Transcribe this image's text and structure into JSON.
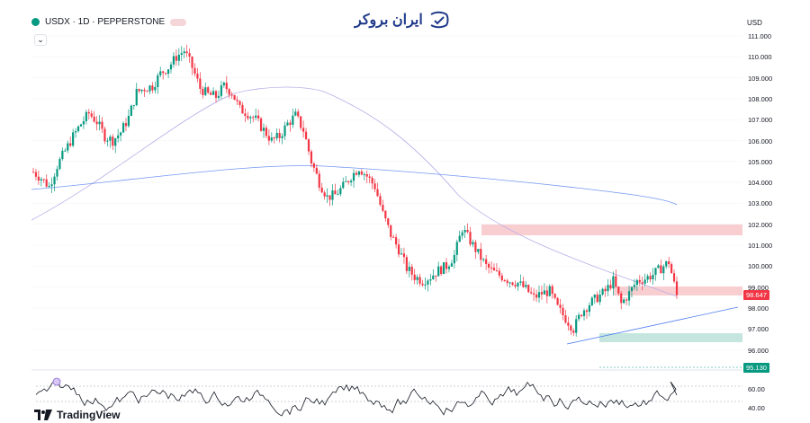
{
  "header": {
    "symbol": "USDX · 1D · PEPPERSTONE",
    "currency": "USD",
    "collapse": "⌄"
  },
  "brand": {
    "name": "ایران بروکر",
    "icon": "handshake-icon"
  },
  "footer": {
    "logo_text": "TradingView",
    "logo_icon": "tradingview-logo-icon"
  },
  "axis": {
    "ticks": [
      "111.000",
      "110.000",
      "109.000",
      "108.000",
      "107.000",
      "106.000",
      "105.000",
      "104.000",
      "103.000",
      "102.000",
      "101.000",
      "100.000",
      "99.000",
      "98.000",
      "97.000",
      "96.000"
    ],
    "current_price": "98.647",
    "lower_level": "95.130"
  },
  "oscillator": {
    "ticks": [
      "60.00",
      "40.00"
    ]
  },
  "colors": {
    "up": "#089981",
    "down": "#f23645",
    "ma_slow": "#4f7df0",
    "ma_fast": "#b8aee8",
    "zone_red": "#f8c5c9",
    "zone_green": "#bfe3dc"
  },
  "chart_data": {
    "type": "candlestick",
    "title": "USDX · 1D · PEPPERSTONE",
    "ylim": [
      96.0,
      111.0
    ],
    "series": [
      {
        "values": [
          104.5,
          104.2,
          103.8,
          104.8,
          105.5,
          106.2,
          106.8,
          107.3,
          106.9,
          106.2,
          106.0,
          106.4,
          107.1,
          108.3,
          108.5,
          108.6,
          109.2,
          109.5,
          110.0,
          110.3,
          109.5,
          108.5,
          108.2,
          108.1,
          108.6,
          108.3,
          107.5,
          107.3,
          107.0,
          106.5,
          106.0,
          106.2,
          106.8,
          107.2,
          106.5,
          105.0,
          104.0,
          103.3,
          103.4,
          103.8,
          104.3,
          104.7,
          104.3,
          103.8,
          102.5,
          101.5,
          100.8,
          99.9,
          99.5,
          99.3,
          99.5,
          99.8,
          100.0,
          100.5,
          101.8,
          101.2,
          100.6,
          100.0,
          99.7,
          99.5,
          99.3,
          99.2,
          98.9,
          98.5,
          98.7,
          98.8,
          98.0,
          97.5,
          97.0,
          97.8,
          98.2,
          98.5,
          98.8,
          99.3,
          98.2,
          98.7,
          99.3,
          99.4,
          99.6,
          99.9,
          100.2,
          98.6
        ]
      }
    ]
  }
}
